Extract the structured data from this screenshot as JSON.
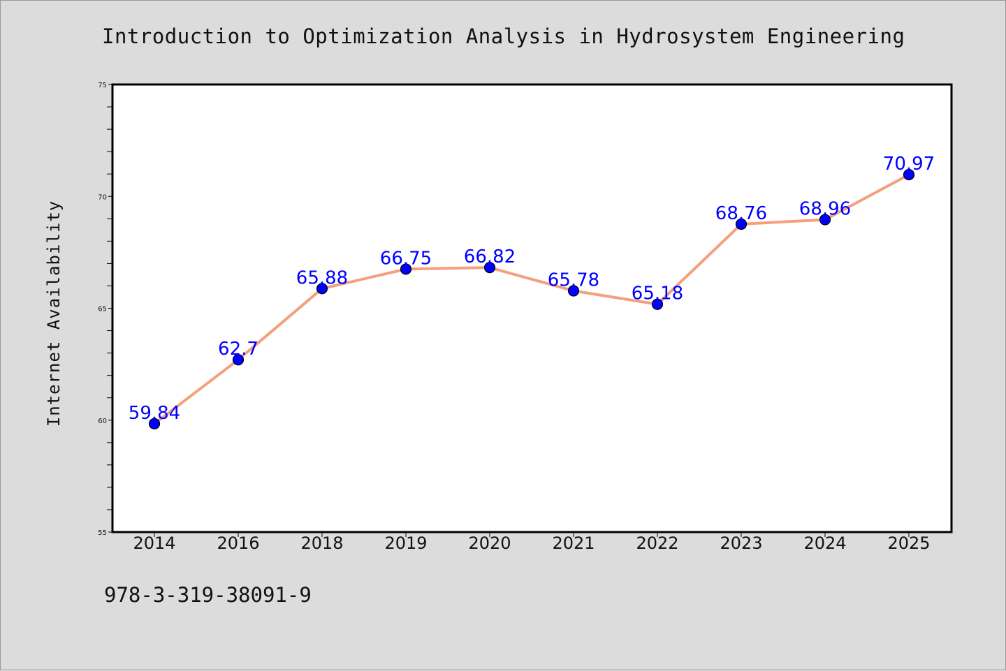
{
  "chart_data": {
    "type": "line",
    "title": "Introduction to Optimization Analysis in Hydrosystem Engineering",
    "xlabel": "",
    "ylabel": "Internet Availability",
    "categories": [
      "2014",
      "2016",
      "2018",
      "2019",
      "2020",
      "2021",
      "2022",
      "2023",
      "2024",
      "2025"
    ],
    "series": [
      {
        "values": [
          59.84,
          62.7,
          65.88,
          66.75,
          66.82,
          65.78,
          65.18,
          68.76,
          68.96,
          70.97
        ],
        "labels": [
          "59.84",
          "62.7",
          "65.88",
          "66.75",
          "66.82",
          "65.78",
          "65.18",
          "68.76",
          "68.96",
          "70.97"
        ],
        "line_color": "#f4a07f",
        "marker_color": "#0000ff"
      }
    ],
    "ylim": [
      55,
      75
    ],
    "yticks": [
      "55",
      "60",
      "65",
      "70",
      "75"
    ],
    "grid": false,
    "legend": "none"
  },
  "footer": {
    "isbn": "978-3-319-38091-9"
  }
}
